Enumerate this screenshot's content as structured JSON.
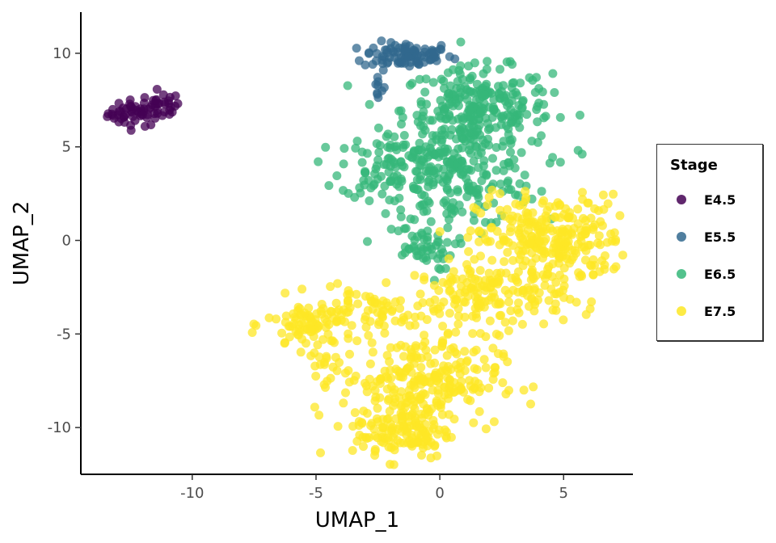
{
  "chart_data": {
    "type": "scatter",
    "xlabel": "UMAP_1",
    "ylabel": "UMAP_2",
    "xlim": [
      -14.5,
      7.8
    ],
    "ylim": [
      -12.5,
      12.2
    ],
    "x_ticks": [
      -10,
      -5,
      0,
      5
    ],
    "x_tick_labels": [
      "-10",
      "-5",
      "0",
      "5"
    ],
    "y_ticks": [
      -10,
      -5,
      0,
      5,
      10
    ],
    "y_tick_labels": [
      "-10",
      "-5",
      "0",
      "5",
      "10"
    ],
    "grid": false,
    "legend": {
      "title": "Stage",
      "placement": "right"
    },
    "series": [
      {
        "name": "E4.5",
        "color": "#440154",
        "clusters": [
          {
            "cx": -12.3,
            "cy": 6.8,
            "sx": 0.55,
            "sy": 0.35,
            "n": 50
          },
          {
            "cx": -11.2,
            "cy": 7.2,
            "sx": 0.35,
            "sy": 0.35,
            "n": 25
          }
        ]
      },
      {
        "name": "E5.5",
        "color": "#31688e",
        "clusters": [
          {
            "cx": -1.3,
            "cy": 9.9,
            "sx": 0.9,
            "sy": 0.35,
            "n": 90
          },
          {
            "cx": -2.5,
            "cy": 8.2,
            "sx": 0.15,
            "sy": 0.6,
            "n": 10
          }
        ]
      },
      {
        "name": "E6.5",
        "color": "#35b779",
        "clusters": [
          {
            "cx": 1.5,
            "cy": 7.0,
            "sx": 1.5,
            "sy": 1.1,
            "n": 260
          },
          {
            "cx": 0.7,
            "cy": 3.5,
            "sx": 1.6,
            "sy": 1.4,
            "n": 220
          },
          {
            "cx": -2.0,
            "cy": 4.0,
            "sx": 1.0,
            "sy": 0.9,
            "n": 80
          },
          {
            "cx": -0.8,
            "cy": -0.4,
            "sx": 0.7,
            "sy": 0.6,
            "n": 50
          }
        ]
      },
      {
        "name": "E7.5",
        "color": "#fde725",
        "clusters": [
          {
            "cx": 4.5,
            "cy": 0.0,
            "sx": 1.5,
            "sy": 1.2,
            "n": 280
          },
          {
            "cx": 2.0,
            "cy": -3.0,
            "sx": 1.5,
            "sy": 0.9,
            "n": 160
          },
          {
            "cx": -5.2,
            "cy": -4.5,
            "sx": 0.9,
            "sy": 0.7,
            "n": 90
          },
          {
            "cx": -2.5,
            "cy": -3.8,
            "sx": 1.1,
            "sy": 0.6,
            "n": 60
          },
          {
            "cx": -0.8,
            "cy": -7.5,
            "sx": 1.6,
            "sy": 1.2,
            "n": 260
          },
          {
            "cx": -1.5,
            "cy": -10.3,
            "sx": 1.0,
            "sy": 0.7,
            "n": 120
          },
          {
            "cx": -4.5,
            "cy": -6.6,
            "sx": 0.3,
            "sy": 0.3,
            "n": 12
          }
        ]
      }
    ]
  }
}
